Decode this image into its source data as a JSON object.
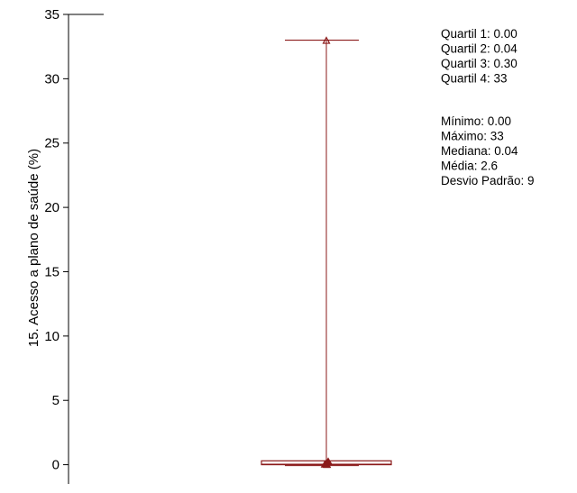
{
  "chart_data": {
    "type": "box",
    "ylabel": "15. Acesso a plano de saúde (%)",
    "ylim": [
      -1.5,
      35
    ],
    "yticks": [
      0,
      5,
      10,
      15,
      20,
      25,
      30,
      35
    ],
    "ytick_labels": [
      "0",
      "5",
      "10",
      "15",
      "20",
      "25",
      "30",
      "35"
    ],
    "box": {
      "min": 0.0,
      "q1": 0.0,
      "median": 0.04,
      "q3": 0.3,
      "max": 33,
      "mean": 2.6,
      "std": 9
    },
    "outlier_points": [
      0.0,
      0.0,
      0.02,
      0.04,
      0.1,
      0.3
    ],
    "color": "#8b1a1a",
    "stats_lines_group1": [
      "Quartil 1: 0.00",
      "Quartil 2: 0.04",
      "Quartil 3: 0.30",
      "Quartil 4: 33"
    ],
    "stats_lines_group2": [
      "Mínimo: 0.00",
      "Máximo: 33",
      "Mediana:  0.04",
      "Média: 2.6",
      "Desvio Padrão: 9"
    ]
  }
}
